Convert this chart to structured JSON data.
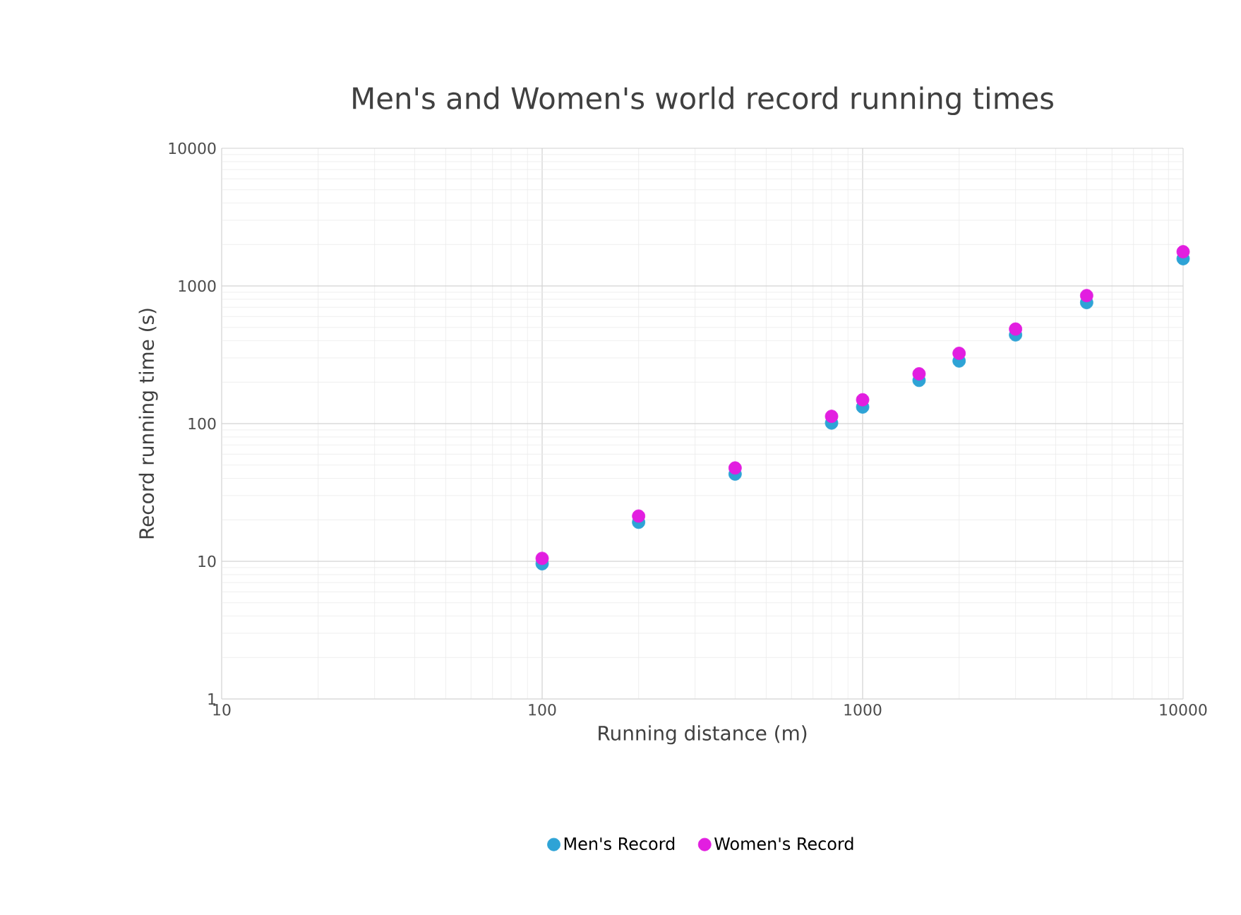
{
  "chart_data": {
    "type": "scatter",
    "title": "Men's and Women's world record running times",
    "xlabel": "Running distance (m)",
    "ylabel": "Record running time (s)",
    "x": [
      100,
      200,
      400,
      800,
      1000,
      1500,
      2000,
      3000,
      5000,
      10000
    ],
    "series": [
      {
        "name": "Men's Record",
        "color": "#2ea3d6",
        "values": [
          9.6,
          19.2,
          43,
          101,
          132,
          206,
          285,
          441,
          757,
          1578
        ]
      },
      {
        "name": "Women's Record",
        "color": "#e21ee0",
        "values": [
          10.5,
          21.3,
          47.6,
          113,
          149,
          230,
          324,
          486,
          851,
          1772
        ]
      }
    ],
    "log": "xy",
    "xlim": [
      10,
      10000
    ],
    "ylim": [
      1,
      10000
    ],
    "xticks": [
      10,
      100,
      1000,
      10000
    ],
    "yticks": [
      1,
      10,
      100,
      1000,
      10000
    ],
    "grid": true,
    "legend": "bottom",
    "marker": "circle"
  }
}
